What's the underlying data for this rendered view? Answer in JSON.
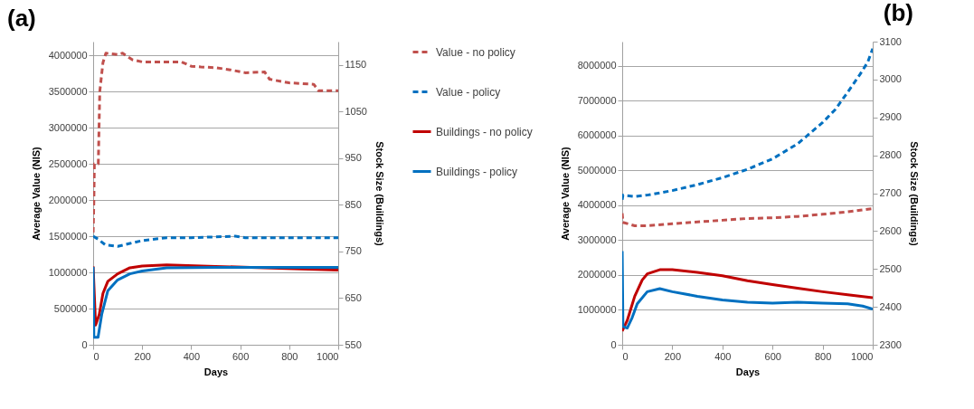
{
  "chart_data": [
    {
      "type": "line",
      "title": "(a)",
      "xlabel": "Days",
      "ylabel": "Average Value (NIS)",
      "y2label": "Stock Size (Buildings)",
      "xlim": [
        0,
        1000
      ],
      "xticks": [
        0,
        200,
        400,
        600,
        800,
        1000
      ],
      "ylim": [
        0,
        4190000
      ],
      "yticks": [
        0,
        500000,
        1000000,
        1500000,
        2000000,
        2500000,
        3000000,
        3500000,
        4000000
      ],
      "y2lim": [
        550,
        1200
      ],
      "y2ticks": [
        550,
        650,
        750,
        850,
        950,
        1050,
        1150
      ],
      "grid": "y",
      "legend": "right",
      "series": [
        {
          "name": "Value - no policy",
          "color": "#c0504d",
          "line_style": "dashed",
          "x": [
            0,
            3,
            5,
            21,
            27,
            40,
            52,
            100,
            120,
            160,
            200,
            360,
            400,
            440,
            500,
            560,
            620,
            700,
            720,
            800,
            900,
            920,
            1000
          ],
          "values": [
            1550000,
            2000000,
            2500000,
            2500000,
            3500000,
            3900000,
            4030000,
            4010000,
            4030000,
            3940000,
            3910000,
            3910000,
            3850000,
            3840000,
            3830000,
            3800000,
            3760000,
            3770000,
            3670000,
            3620000,
            3600000,
            3510000,
            3510000
          ]
        },
        {
          "name": "Value - policy",
          "color": "#0070c0",
          "line_style": "dashed",
          "x": [
            0,
            20,
            50,
            100,
            150,
            200,
            300,
            400,
            580,
            620,
            1000
          ],
          "values": [
            1500000,
            1460000,
            1380000,
            1360000,
            1400000,
            1440000,
            1480000,
            1480000,
            1500000,
            1480000,
            1480000
          ]
        },
        {
          "name": "Buildings - no policy",
          "color": "#c00000",
          "line_style": "solid",
          "axis": "y2",
          "x": [
            0,
            10,
            25,
            40,
            60,
            100,
            150,
            200,
            300,
            500,
            700,
            1000
          ],
          "values": [
            718,
            592,
            615,
            660,
            686,
            702,
            715,
            719,
            721,
            718,
            715,
            710
          ]
        },
        {
          "name": "Buildings - policy",
          "color": "#0070c0",
          "line_style": "solid",
          "axis": "y2",
          "x": [
            0,
            3,
            20,
            35,
            60,
            100,
            150,
            200,
            300,
            500,
            1000
          ],
          "values": [
            717,
            566,
            566,
            615,
            666,
            689,
            702,
            708,
            715,
            716,
            716
          ]
        }
      ]
    },
    {
      "type": "line",
      "title": "(b)",
      "xlabel": "Days",
      "ylabel": "Average Value (NIS)",
      "y2label": "Stock Size (Buildings)",
      "xlim": [
        0,
        1000
      ],
      "xticks": [
        0,
        200,
        400,
        600,
        800,
        1000
      ],
      "ylim": [
        0,
        8690000
      ],
      "yticks": [
        0,
        1000000,
        2000000,
        3000000,
        4000000,
        5000000,
        6000000,
        7000000,
        8000000
      ],
      "y2lim": [
        2300,
        3100
      ],
      "y2ticks": [
        2300,
        2400,
        2500,
        2600,
        2700,
        2800,
        2900,
        3000,
        3100
      ],
      "grid": "y",
      "series": [
        {
          "color": "#c0504d",
          "line_style": "dashed",
          "x": [
            0,
            3,
            50,
            100,
            200,
            300,
            400,
            500,
            600,
            700,
            800,
            900,
            1000
          ],
          "values": [
            3770000,
            3510000,
            3410000,
            3410000,
            3470000,
            3520000,
            3570000,
            3620000,
            3640000,
            3680000,
            3740000,
            3810000,
            3900000
          ]
        },
        {
          "color": "#0070c0",
          "line_style": "dashed",
          "x": [
            0,
            3,
            50,
            100,
            200,
            300,
            400,
            500,
            600,
            700,
            800,
            850,
            900,
            950,
            980,
            1000
          ],
          "values": [
            4160000,
            4290000,
            4250000,
            4290000,
            4420000,
            4590000,
            4790000,
            5030000,
            5330000,
            5760000,
            6370000,
            6740000,
            7240000,
            7760000,
            8100000,
            8490000
          ]
        },
        {
          "color": "#c00000",
          "line_style": "solid",
          "axis": "y2",
          "x": [
            0,
            20,
            50,
            80,
            100,
            150,
            200,
            300,
            400,
            500,
            600,
            700,
            800,
            900,
            1000
          ],
          "values": [
            2336,
            2364,
            2428,
            2471,
            2487,
            2498,
            2498,
            2491,
            2482,
            2469,
            2459,
            2449,
            2440,
            2432,
            2424
          ]
        },
        {
          "color": "#0070c0",
          "line_style": "solid",
          "axis": "y2",
          "x": [
            0,
            3,
            20,
            40,
            60,
            100,
            150,
            200,
            300,
            400,
            500,
            600,
            700,
            800,
            900,
            960,
            1000
          ],
          "values": [
            2547,
            2348,
            2344,
            2372,
            2408,
            2440,
            2448,
            2440,
            2428,
            2418,
            2412,
            2410,
            2412,
            2410,
            2408,
            2402,
            2394
          ]
        }
      ]
    }
  ]
}
